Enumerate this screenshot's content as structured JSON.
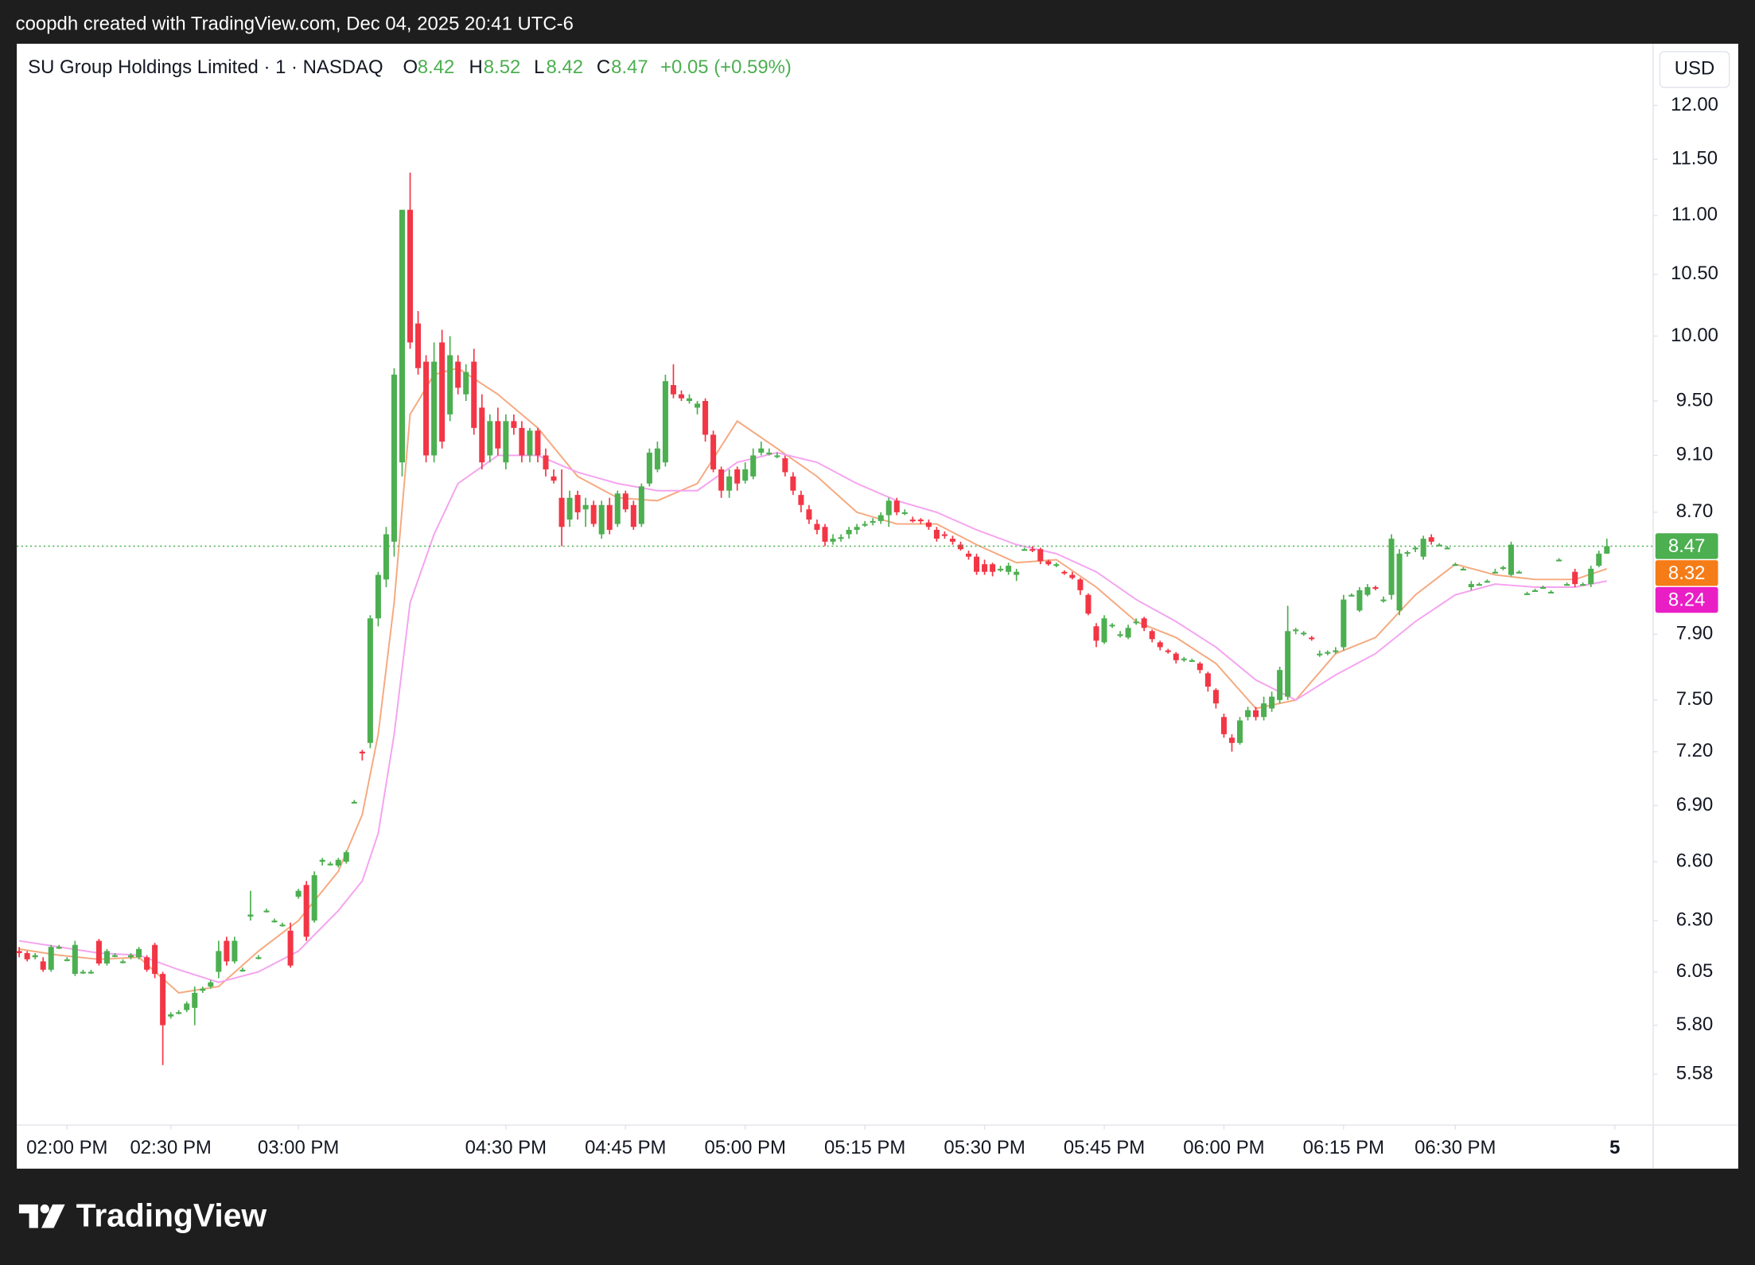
{
  "chart_data": {
    "type": "candlestick",
    "attribution": "coopdh created with TradingView.com, Dec 04, 2025 20:41 UTC-6",
    "title": "SU Group Holdings Limited · 1 · NASDAQ",
    "ohlc_letters": [
      "O",
      "H",
      "L",
      "C"
    ],
    "change_label": "+0.05 (+0.59%)",
    "currency": "USD",
    "brand": "TradingView",
    "log_scale": true,
    "grid": false,
    "up_color": "#4caf50",
    "down_color": "#f23645",
    "ylim": [
      5.36,
      12.6
    ],
    "yticks": [
      {
        "value": 12,
        "label": "12.00"
      },
      {
        "value": 11.5,
        "label": "11.50"
      },
      {
        "value": 11,
        "label": "11.00"
      },
      {
        "value": 10.5,
        "label": "10.50"
      },
      {
        "value": 10,
        "label": "10.00"
      },
      {
        "value": 9.5,
        "label": "9.50"
      },
      {
        "value": 9.1,
        "label": "9.10"
      },
      {
        "value": 8.7,
        "label": "8.70"
      },
      {
        "value": 7.9,
        "label": "7.90"
      },
      {
        "value": 7.5,
        "label": "7.50"
      },
      {
        "value": 7.2,
        "label": "7.20"
      },
      {
        "value": 6.9,
        "label": "6.90"
      },
      {
        "value": 6.6,
        "label": "6.60"
      },
      {
        "value": 6.3,
        "label": "6.30"
      },
      {
        "value": 6.05,
        "label": "6.05"
      },
      {
        "value": 5.8,
        "label": "5.80"
      },
      {
        "value": 5.58,
        "label": "5.58"
      }
    ],
    "xlim": [
      -0.3,
      204.8
    ],
    "xticks": [
      {
        "value": 6,
        "label": "02:00 PM"
      },
      {
        "value": 19,
        "label": "02:30 PM"
      },
      {
        "value": 35,
        "label": "03:00 PM"
      },
      {
        "value": 61,
        "label": "04:30 PM"
      },
      {
        "value": 76,
        "label": "04:45 PM"
      },
      {
        "value": 91,
        "label": "05:00 PM"
      },
      {
        "value": 106,
        "label": "05:15 PM"
      },
      {
        "value": 121,
        "label": "05:30 PM"
      },
      {
        "value": 136,
        "label": "05:45 PM"
      },
      {
        "value": 151,
        "label": "06:00 PM"
      },
      {
        "value": 166,
        "label": "06:15 PM"
      },
      {
        "value": 180,
        "label": "06:30 PM"
      },
      {
        "value": 200,
        "label": "5"
      }
    ],
    "ohlc": [
      [
        6.15,
        6.17,
        6.12,
        6.14
      ],
      [
        6.14,
        6.15,
        6.1,
        6.11
      ],
      [
        6.12,
        6.14,
        6.11,
        6.13
      ],
      [
        6.1,
        6.12,
        6.05,
        6.06
      ],
      [
        6.06,
        6.18,
        6.05,
        6.17
      ],
      [
        6.17,
        6.18,
        6.16,
        6.17
      ],
      [
        6.11,
        6.12,
        6.1,
        6.11
      ],
      [
        6.04,
        6.2,
        6.03,
        6.18
      ],
      [
        6.05,
        6.06,
        6.04,
        6.05
      ],
      [
        6.05,
        6.06,
        6.04,
        6.05
      ],
      [
        6.2,
        6.21,
        6.08,
        6.09
      ],
      [
        6.09,
        6.16,
        6.08,
        6.15
      ],
      [
        6.13,
        6.14,
        6.12,
        6.13
      ],
      [
        6.1,
        6.11,
        6.09,
        6.1
      ],
      [
        6.12,
        6.14,
        6.11,
        6.13
      ],
      [
        6.12,
        6.17,
        6.11,
        6.16
      ],
      [
        6.12,
        6.13,
        6.05,
        6.06
      ],
      [
        6.18,
        6.19,
        6.02,
        6.04
      ],
      [
        6.04,
        6.05,
        5.62,
        5.8
      ],
      [
        5.84,
        5.86,
        5.83,
        5.85
      ],
      [
        5.86,
        5.87,
        5.85,
        5.86
      ],
      [
        5.87,
        5.91,
        5.86,
        5.9
      ],
      [
        5.88,
        5.98,
        5.8,
        5.95
      ],
      [
        5.96,
        5.98,
        5.95,
        5.97
      ],
      [
        5.98,
        6.01,
        5.97,
        6.0
      ],
      [
        6.05,
        6.2,
        6.02,
        6.15
      ],
      [
        6.2,
        6.22,
        6.08,
        6.1
      ],
      [
        6.1,
        6.22,
        6.09,
        6.2
      ],
      [
        6.06,
        6.07,
        6.05,
        6.06
      ],
      [
        6.32,
        6.45,
        6.3,
        6.33
      ],
      [
        6.12,
        6.13,
        6.11,
        6.12
      ],
      [
        6.35,
        6.36,
        6.34,
        6.35
      ],
      [
        6.3,
        6.31,
        6.29,
        6.3
      ],
      [
        6.28,
        6.29,
        6.27,
        6.28
      ],
      [
        6.25,
        6.29,
        6.07,
        6.08
      ],
      [
        6.42,
        6.46,
        6.41,
        6.45
      ],
      [
        6.48,
        6.5,
        6.2,
        6.22
      ],
      [
        6.3,
        6.55,
        6.29,
        6.53
      ],
      [
        6.6,
        6.62,
        6.58,
        6.61
      ],
      [
        6.59,
        6.6,
        6.58,
        6.59
      ],
      [
        6.58,
        6.62,
        6.57,
        6.61
      ],
      [
        6.6,
        6.66,
        6.59,
        6.65
      ],
      [
        6.92,
        6.93,
        6.91,
        6.92
      ],
      [
        7.2,
        7.21,
        7.15,
        7.19
      ],
      [
        7.25,
        8.02,
        7.22,
        8.0
      ],
      [
        8.0,
        8.3,
        7.95,
        8.28
      ],
      [
        8.25,
        8.6,
        8.2,
        8.55
      ],
      [
        8.5,
        9.75,
        8.4,
        9.7
      ],
      [
        9.05,
        11.05,
        8.95,
        11.05
      ],
      [
        11.05,
        11.38,
        9.9,
        9.95
      ],
      [
        10.1,
        10.2,
        9.7,
        9.75
      ],
      [
        9.8,
        9.85,
        9.05,
        9.1
      ],
      [
        9.1,
        9.95,
        9.05,
        9.8
      ],
      [
        9.95,
        10.05,
        9.15,
        9.2
      ],
      [
        9.4,
        10.0,
        9.35,
        9.85
      ],
      [
        9.8,
        9.85,
        9.55,
        9.6
      ],
      [
        9.55,
        9.78,
        9.5,
        9.72
      ],
      [
        9.8,
        9.9,
        9.25,
        9.3
      ],
      [
        9.45,
        9.55,
        9.0,
        9.05
      ],
      [
        9.1,
        9.4,
        9.05,
        9.35
      ],
      [
        9.35,
        9.45,
        9.1,
        9.15
      ],
      [
        9.05,
        9.4,
        9.0,
        9.35
      ],
      [
        9.35,
        9.4,
        9.25,
        9.3
      ],
      [
        9.3,
        9.35,
        9.05,
        9.1
      ],
      [
        9.1,
        9.3,
        9.05,
        9.28
      ],
      [
        9.28,
        9.3,
        9.05,
        9.1
      ],
      [
        9.1,
        9.15,
        8.95,
        9.0
      ],
      [
        8.95,
        9.0,
        8.9,
        8.92
      ],
      [
        8.8,
        9.0,
        8.47,
        8.6
      ],
      [
        8.65,
        8.85,
        8.6,
        8.8
      ],
      [
        8.82,
        8.85,
        8.65,
        8.7
      ],
      [
        8.72,
        8.8,
        8.6,
        8.75
      ],
      [
        8.75,
        8.78,
        8.6,
        8.62
      ],
      [
        8.55,
        8.78,
        8.52,
        8.75
      ],
      [
        8.75,
        8.8,
        8.55,
        8.58
      ],
      [
        8.62,
        8.85,
        8.6,
        8.83
      ],
      [
        8.83,
        8.85,
        8.7,
        8.72
      ],
      [
        8.75,
        8.78,
        8.58,
        8.6
      ],
      [
        8.62,
        8.9,
        8.6,
        8.88
      ],
      [
        8.9,
        9.15,
        8.88,
        9.12
      ],
      [
        9.0,
        9.2,
        8.98,
        9.15
      ],
      [
        9.05,
        9.7,
        9.02,
        9.65
      ],
      [
        9.62,
        9.78,
        9.52,
        9.55
      ],
      [
        9.55,
        9.58,
        9.5,
        9.52
      ],
      [
        9.5,
        9.55,
        9.48,
        9.52
      ],
      [
        9.45,
        9.5,
        9.4,
        9.48
      ],
      [
        9.5,
        9.52,
        9.2,
        9.25
      ],
      [
        9.25,
        9.28,
        8.98,
        9.0
      ],
      [
        9.0,
        9.02,
        8.8,
        8.85
      ],
      [
        8.85,
        9.0,
        8.8,
        8.95
      ],
      [
        9.0,
        9.02,
        8.85,
        8.9
      ],
      [
        8.92,
        9.05,
        8.9,
        9.0
      ],
      [
        8.95,
        9.15,
        8.93,
        9.1
      ],
      [
        9.12,
        9.2,
        9.1,
        9.15
      ],
      [
        9.12,
        9.15,
        9.1,
        9.12
      ],
      [
        9.1,
        9.12,
        9.08,
        9.1
      ],
      [
        9.08,
        9.1,
        8.95,
        8.98
      ],
      [
        8.95,
        8.98,
        8.82,
        8.85
      ],
      [
        8.82,
        8.85,
        8.7,
        8.75
      ],
      [
        8.72,
        8.75,
        8.62,
        8.65
      ],
      [
        8.62,
        8.65,
        8.55,
        8.58
      ],
      [
        8.6,
        8.62,
        8.47,
        8.5
      ],
      [
        8.5,
        8.55,
        8.48,
        8.52
      ],
      [
        8.52,
        8.55,
        8.5,
        8.53
      ],
      [
        8.55,
        8.6,
        8.52,
        8.58
      ],
      [
        8.58,
        8.62,
        8.55,
        8.6
      ],
      [
        8.62,
        8.64,
        8.6,
        8.62
      ],
      [
        8.63,
        8.66,
        8.61,
        8.64
      ],
      [
        8.64,
        8.7,
        8.62,
        8.68
      ],
      [
        8.68,
        8.8,
        8.6,
        8.78
      ],
      [
        8.78,
        8.8,
        8.68,
        8.7
      ],
      [
        8.7,
        8.72,
        8.68,
        8.7
      ],
      [
        8.65,
        8.67,
        8.63,
        8.64
      ],
      [
        8.65,
        8.66,
        8.62,
        8.64
      ],
      [
        8.63,
        8.65,
        8.58,
        8.6
      ],
      [
        8.58,
        8.6,
        8.5,
        8.52
      ],
      [
        8.55,
        8.57,
        8.52,
        8.54
      ],
      [
        8.52,
        8.54,
        8.48,
        8.5
      ],
      [
        8.48,
        8.5,
        8.44,
        8.45
      ],
      [
        8.42,
        8.44,
        8.38,
        8.4
      ],
      [
        8.4,
        8.42,
        8.28,
        8.3
      ],
      [
        8.35,
        8.38,
        8.28,
        8.3
      ],
      [
        8.35,
        8.36,
        8.27,
        8.3
      ],
      [
        8.32,
        8.34,
        8.3,
        8.32
      ],
      [
        8.3,
        8.36,
        8.28,
        8.34
      ],
      [
        8.28,
        8.32,
        8.24,
        8.3
      ],
      [
        8.45,
        8.46,
        8.44,
        8.45
      ],
      [
        8.45,
        8.47,
        8.43,
        8.44
      ],
      [
        8.45,
        8.46,
        8.35,
        8.37
      ],
      [
        8.37,
        8.38,
        8.34,
        8.35
      ],
      [
        8.34,
        8.36,
        8.33,
        8.35
      ],
      [
        8.3,
        8.31,
        8.28,
        8.29
      ],
      [
        8.28,
        8.3,
        8.25,
        8.26
      ],
      [
        8.25,
        8.26,
        8.15,
        8.18
      ],
      [
        8.15,
        8.16,
        8.02,
        8.03
      ],
      [
        7.95,
        7.97,
        7.82,
        7.86
      ],
      [
        7.85,
        8.02,
        7.84,
        8.0
      ],
      [
        7.95,
        7.97,
        7.94,
        7.96
      ],
      [
        7.9,
        7.92,
        7.88,
        7.9
      ],
      [
        7.88,
        7.96,
        7.87,
        7.94
      ],
      [
        7.98,
        8.0,
        7.96,
        7.98
      ],
      [
        8.0,
        8.01,
        7.92,
        7.94
      ],
      [
        7.92,
        7.93,
        7.85,
        7.87
      ],
      [
        7.85,
        7.86,
        7.8,
        7.82
      ],
      [
        7.8,
        7.81,
        7.78,
        7.79
      ],
      [
        7.78,
        7.79,
        7.72,
        7.74
      ],
      [
        7.74,
        7.76,
        7.73,
        7.75
      ],
      [
        7.74,
        7.75,
        7.73,
        7.74
      ],
      [
        7.72,
        7.73,
        7.66,
        7.68
      ],
      [
        7.66,
        7.67,
        7.55,
        7.58
      ],
      [
        7.56,
        7.57,
        7.45,
        7.48
      ],
      [
        7.4,
        7.42,
        7.28,
        7.3
      ],
      [
        7.28,
        7.3,
        7.2,
        7.25
      ],
      [
        7.25,
        7.4,
        7.24,
        7.38
      ],
      [
        7.4,
        7.46,
        7.38,
        7.44
      ],
      [
        7.44,
        7.46,
        7.38,
        7.4
      ],
      [
        7.4,
        7.52,
        7.38,
        7.48
      ],
      [
        7.45,
        7.55,
        7.43,
        7.52
      ],
      [
        7.5,
        7.7,
        7.48,
        7.68
      ],
      [
        7.52,
        8.08,
        7.5,
        7.92
      ],
      [
        7.92,
        7.94,
        7.9,
        7.93
      ],
      [
        7.9,
        7.92,
        7.89,
        7.91
      ],
      [
        7.88,
        7.89,
        7.86,
        7.87
      ],
      [
        7.78,
        7.8,
        7.76,
        7.78
      ],
      [
        7.78,
        7.8,
        7.77,
        7.79
      ],
      [
        7.8,
        7.82,
        7.78,
        7.8
      ],
      [
        7.82,
        8.15,
        7.8,
        8.12
      ],
      [
        8.15,
        8.16,
        8.14,
        8.15
      ],
      [
        8.05,
        8.2,
        8.04,
        8.18
      ],
      [
        8.15,
        8.22,
        8.14,
        8.2
      ],
      [
        8.2,
        8.21,
        8.18,
        8.19
      ],
      [
        8.12,
        8.14,
        8.1,
        8.12
      ],
      [
        8.15,
        8.55,
        8.12,
        8.52
      ],
      [
        8.05,
        8.45,
        8.02,
        8.42
      ],
      [
        8.42,
        8.44,
        8.4,
        8.43
      ],
      [
        8.45,
        8.47,
        8.43,
        8.46
      ],
      [
        8.4,
        8.54,
        8.38,
        8.52
      ],
      [
        8.53,
        8.55,
        8.48,
        8.5
      ],
      [
        8.48,
        8.49,
        8.47,
        8.48
      ],
      [
        8.46,
        8.47,
        8.45,
        8.46
      ],
      [
        8.35,
        8.36,
        8.34,
        8.35
      ],
      [
        8.32,
        8.33,
        8.31,
        8.32
      ],
      [
        8.2,
        8.24,
        8.18,
        8.22
      ],
      [
        8.22,
        8.23,
        8.21,
        8.22
      ],
      [
        8.24,
        8.25,
        8.23,
        8.24
      ],
      [
        8.3,
        8.32,
        8.29,
        8.3
      ],
      [
        8.32,
        8.34,
        8.31,
        8.33
      ],
      [
        8.28,
        8.5,
        8.27,
        8.48
      ],
      [
        8.3,
        8.31,
        8.29,
        8.3
      ],
      [
        8.16,
        8.17,
        8.15,
        8.16
      ],
      [
        8.18,
        8.19,
        8.17,
        8.18
      ],
      [
        8.2,
        8.21,
        8.19,
        8.2
      ],
      [
        8.17,
        8.18,
        8.16,
        8.17
      ],
      [
        8.38,
        8.39,
        8.37,
        8.38
      ],
      [
        8.22,
        8.23,
        8.21,
        8.22
      ],
      [
        8.3,
        8.32,
        8.2,
        8.22
      ],
      [
        8.22,
        8.23,
        8.21,
        8.22
      ],
      [
        8.22,
        8.34,
        8.2,
        8.32
      ],
      [
        8.34,
        8.44,
        8.33,
        8.42
      ],
      [
        8.42,
        8.52,
        8.42,
        8.47
      ]
    ],
    "last_color": "#4caf50",
    "overlays": [
      {
        "color": "#f5a97f",
        "label_color": "#f57c17",
        "x": [
          0,
          5,
          10,
          15,
          20,
          25,
          30,
          35,
          40,
          43,
          45,
          47,
          49,
          52,
          55,
          60,
          65,
          70,
          75,
          80,
          85,
          90,
          95,
          100,
          105,
          110,
          115,
          120,
          125,
          130,
          135,
          140,
          145,
          150,
          155,
          160,
          165,
          170,
          175,
          180,
          185,
          190,
          195,
          199
        ],
        "values": [
          6.16,
          6.13,
          6.11,
          6.12,
          5.95,
          5.98,
          6.15,
          6.3,
          6.55,
          6.85,
          7.3,
          8.1,
          9.4,
          9.7,
          9.75,
          9.55,
          9.3,
          8.95,
          8.8,
          8.78,
          8.9,
          9.35,
          9.15,
          8.95,
          8.7,
          8.62,
          8.62,
          8.48,
          8.36,
          8.38,
          8.2,
          7.98,
          7.88,
          7.72,
          7.45,
          7.5,
          7.78,
          7.88,
          8.15,
          8.35,
          8.28,
          8.25,
          8.25,
          8.32
        ]
      },
      {
        "color": "#f5a3f0",
        "label_color": "#e91ec5",
        "x": [
          0,
          5,
          10,
          15,
          20,
          25,
          30,
          35,
          40,
          43,
          45,
          47,
          49,
          52,
          55,
          60,
          65,
          70,
          75,
          80,
          85,
          90,
          95,
          100,
          105,
          110,
          115,
          120,
          125,
          130,
          135,
          140,
          145,
          150,
          155,
          160,
          165,
          170,
          175,
          180,
          185,
          190,
          195,
          199
        ],
        "values": [
          6.2,
          6.17,
          6.14,
          6.13,
          6.06,
          6.0,
          6.05,
          6.15,
          6.35,
          6.5,
          6.75,
          7.3,
          8.1,
          8.55,
          8.9,
          9.1,
          9.1,
          8.98,
          8.9,
          8.85,
          8.85,
          9.05,
          9.12,
          9.05,
          8.9,
          8.78,
          8.7,
          8.58,
          8.48,
          8.42,
          8.3,
          8.12,
          7.98,
          7.82,
          7.62,
          7.5,
          7.65,
          7.78,
          7.98,
          8.15,
          8.22,
          8.2,
          8.2,
          8.24
        ]
      }
    ]
  }
}
